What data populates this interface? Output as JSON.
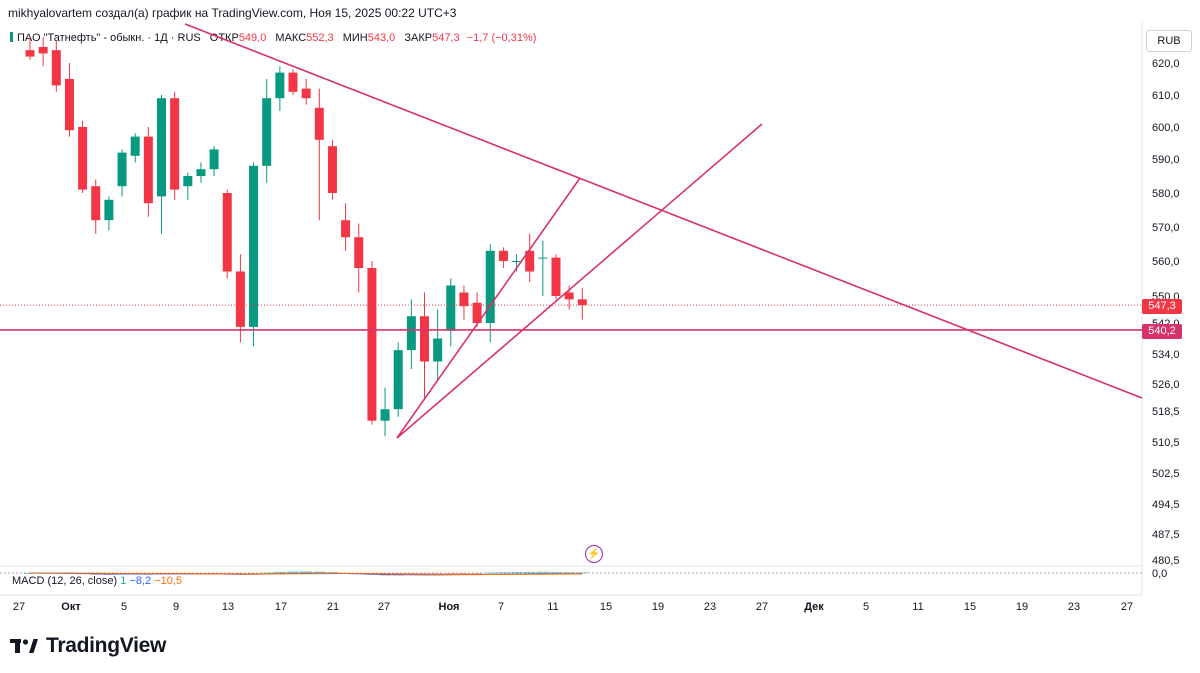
{
  "header": {
    "attribution": "mikhyalovartem создал(а) график на TradingView.com, Ноя 15, 2025 00:22 UTC+3"
  },
  "legend": {
    "symbol": "ПАО \"Татнефть\" - обыкн. · 1Д · RUS",
    "open_label": "ОТКР",
    "open": "549,0",
    "high_label": "МАКС",
    "high": "552,3",
    "low_label": "МИН",
    "low": "543,0",
    "close_label": "ЗАКР",
    "close": "547,3",
    "change": "−1,7 (−0,31%)"
  },
  "currency": "RUB",
  "price_badges": {
    "last": "547,3",
    "level": "540,2"
  },
  "macd_legend": {
    "name": "MACD (12, 26, close)",
    "hist": "1",
    "macd": "−8,2",
    "signal": "−10,5"
  },
  "brand": {
    "name": "TradingView"
  },
  "colors": {
    "up": "#089981",
    "down": "#f23645",
    "trendline": "#d6336c",
    "macd": "#2962ff",
    "signal": "#ff6d00"
  },
  "chart_data": {
    "type": "candlestick",
    "x_ticks": [
      "27",
      "Окт",
      "5",
      "9",
      "13",
      "17",
      "21",
      "27",
      "Ноя",
      "7",
      "11",
      "15",
      "19",
      "23",
      "27",
      "Дек",
      "5",
      "11",
      "15",
      "19",
      "23",
      "27"
    ],
    "y_ticks": [
      "620,0",
      "610,0",
      "600,0",
      "590,0",
      "580,0",
      "570,0",
      "560,0",
      "550,0",
      "542,0",
      "534,0",
      "526,0",
      "518,5",
      "510,5",
      "502,5",
      "494,5",
      "487,5",
      "480,5"
    ],
    "macd_zero_label": "0,0",
    "candles": [
      {
        "o": 624,
        "h": 628,
        "l": 621,
        "c": 622
      },
      {
        "o": 625,
        "h": 628,
        "l": 619,
        "c": 623
      },
      {
        "o": 624,
        "h": 627,
        "l": 611,
        "c": 613
      },
      {
        "o": 615,
        "h": 620,
        "l": 597,
        "c": 599
      },
      {
        "o": 600,
        "h": 602,
        "l": 580,
        "c": 581
      },
      {
        "o": 582,
        "h": 584,
        "l": 568,
        "c": 572
      },
      {
        "o": 572,
        "h": 579,
        "l": 569,
        "c": 578
      },
      {
        "o": 582,
        "h": 593,
        "l": 579,
        "c": 592
      },
      {
        "o": 591,
        "h": 598,
        "l": 589,
        "c": 597
      },
      {
        "o": 597,
        "h": 600,
        "l": 573,
        "c": 577
      },
      {
        "o": 579,
        "h": 610,
        "l": 568,
        "c": 609
      },
      {
        "o": 609,
        "h": 611,
        "l": 578,
        "c": 581
      },
      {
        "o": 582,
        "h": 586,
        "l": 578,
        "c": 585
      },
      {
        "o": 585,
        "h": 589,
        "l": 583,
        "c": 587
      },
      {
        "o": 587,
        "h": 594,
        "l": 585,
        "c": 593
      },
      {
        "o": 580,
        "h": 581,
        "l": 555,
        "c": 557
      },
      {
        "o": 557,
        "h": 562,
        "l": 537,
        "c": 541
      },
      {
        "o": 541,
        "h": 589,
        "l": 536,
        "c": 588
      },
      {
        "o": 588,
        "h": 615,
        "l": 583,
        "c": 609
      },
      {
        "o": 609,
        "h": 619,
        "l": 605,
        "c": 617
      },
      {
        "o": 617,
        "h": 618,
        "l": 610,
        "c": 611
      },
      {
        "o": 612,
        "h": 615,
        "l": 607,
        "c": 609
      },
      {
        "o": 606,
        "h": 612,
        "l": 572,
        "c": 596
      },
      {
        "o": 594,
        "h": 596,
        "l": 578,
        "c": 580
      },
      {
        "o": 572,
        "h": 577,
        "l": 563,
        "c": 567
      },
      {
        "o": 567,
        "h": 571,
        "l": 551,
        "c": 558
      },
      {
        "o": 558,
        "h": 560,
        "l": 515,
        "c": 516
      },
      {
        "o": 516,
        "h": 525,
        "l": 512,
        "c": 519
      },
      {
        "o": 519,
        "h": 537,
        "l": 517,
        "c": 535
      },
      {
        "o": 535,
        "h": 549,
        "l": 530,
        "c": 544
      },
      {
        "o": 544,
        "h": 551,
        "l": 522,
        "c": 532
      },
      {
        "o": 532,
        "h": 546,
        "l": 527,
        "c": 538
      },
      {
        "o": 540,
        "h": 555,
        "l": 536,
        "c": 553
      },
      {
        "o": 551,
        "h": 553,
        "l": 543,
        "c": 547
      },
      {
        "o": 548,
        "h": 551,
        "l": 541,
        "c": 542
      },
      {
        "o": 542,
        "h": 565,
        "l": 537,
        "c": 563
      },
      {
        "o": 563,
        "h": 564,
        "l": 558,
        "c": 560
      },
      {
        "o": 560,
        "h": 562,
        "l": 557,
        "c": 560
      },
      {
        "o": 563,
        "h": 568,
        "l": 554,
        "c": 557
      },
      {
        "o": 561,
        "h": 566,
        "l": 550,
        "c": 561
      },
      {
        "o": 561,
        "h": 562,
        "l": 549,
        "c": 550
      },
      {
        "o": 551,
        "h": 553,
        "l": 546,
        "c": 549
      },
      {
        "o": 549,
        "h": 552.3,
        "l": 543,
        "c": 547.3
      }
    ],
    "horizontal_level": 540.2,
    "last_price": 547.3
  }
}
